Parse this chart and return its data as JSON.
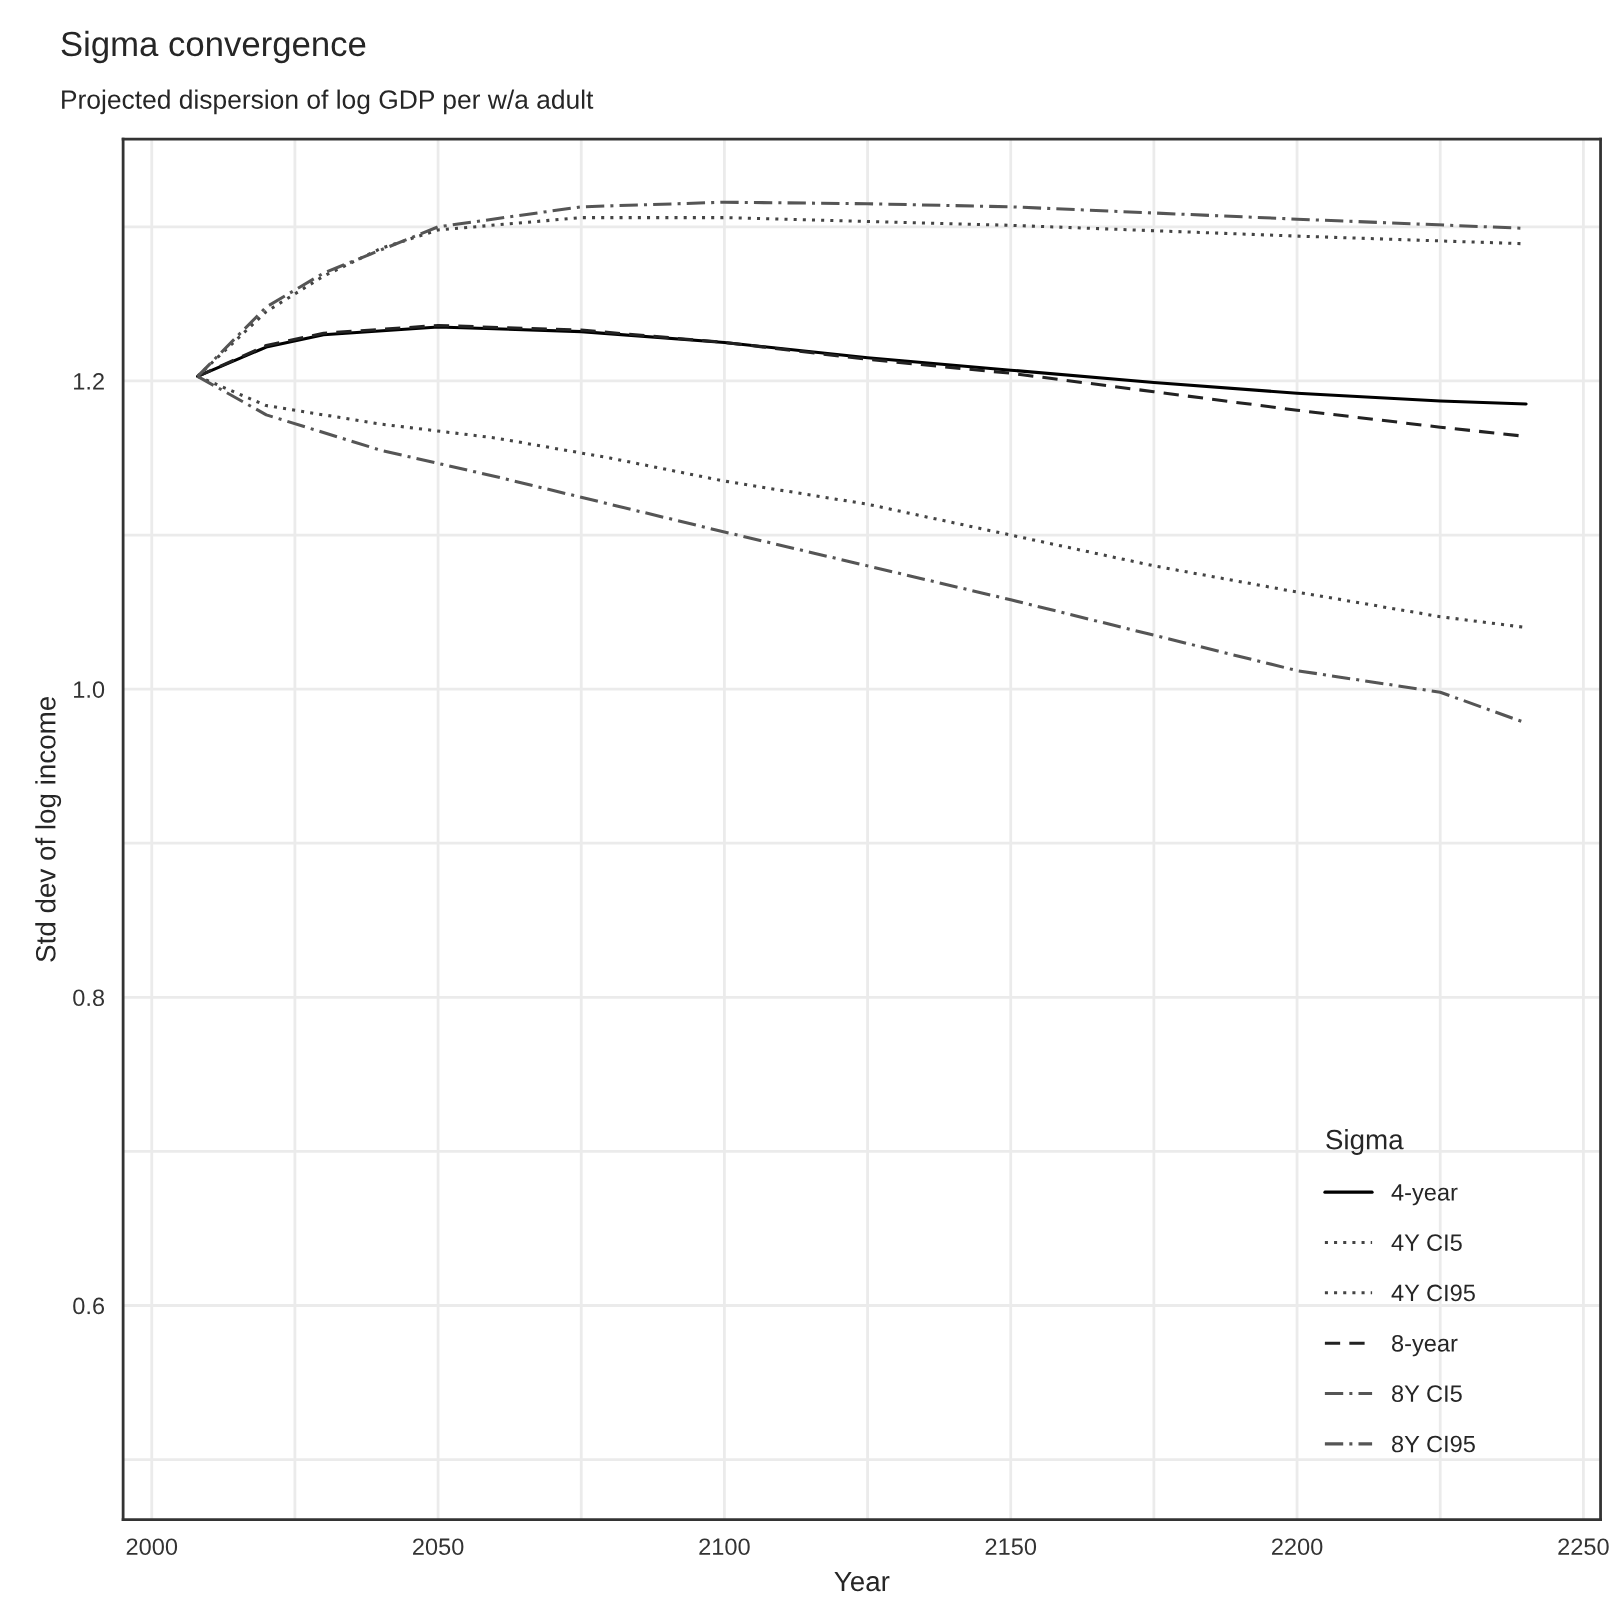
{
  "chart_data": {
    "type": "line",
    "title": "Sigma convergence",
    "subtitle": "Projected dispersion of log GDP per w/a adult",
    "xlabel": "Year",
    "ylabel": "Std dev of log income",
    "legend_title": "Sigma",
    "legend": "bottom right",
    "grid": true,
    "xlim": [
      1995,
      2253
    ],
    "ylim": [
      0.461,
      1.357
    ],
    "xticks": [
      2000,
      {
        "value": 2025,
        "label": null
      },
      2050,
      {
        "value": 2075,
        "label": null
      },
      2100,
      {
        "value": 2125,
        "label": null
      },
      2150,
      {
        "value": 2175,
        "label": null
      },
      2200,
      {
        "value": 2225,
        "label": null
      },
      2250
    ],
    "yticks": [
      {
        "value": 0.5,
        "label": null
      },
      0.6,
      {
        "value": 0.7,
        "label": null
      },
      0.8,
      {
        "value": 0.9,
        "label": null
      },
      {
        "value": 1.0,
        "label": "1.0"
      },
      {
        "value": 1.1,
        "label": null
      },
      1.2,
      {
        "value": 1.3,
        "label": null
      }
    ],
    "series": [
      {
        "name": "4-year",
        "color": "#000000",
        "line_style": "solid",
        "x": [
          2008,
          2020,
          2030,
          2050,
          2075,
          2100,
          2125,
          2150,
          2175,
          2200,
          2225,
          2240
        ],
        "values": [
          1.203,
          1.222,
          1.23,
          1.235,
          1.232,
          1.225,
          1.215,
          1.207,
          1.199,
          1.192,
          1.187,
          1.185
        ]
      },
      {
        "name": "4Y CI5",
        "color": "#444444",
        "line_style": "dotted",
        "x": [
          2008,
          2020,
          2040,
          2060,
          2080,
          2100,
          2125,
          2150,
          2175,
          2200,
          2225,
          2240
        ],
        "values": [
          1.203,
          1.184,
          1.172,
          1.163,
          1.15,
          1.135,
          1.12,
          1.1,
          1.08,
          1.063,
          1.047,
          1.04
        ]
      },
      {
        "name": "4Y CI95",
        "color": "#444444",
        "line_style": "dotted",
        "x": [
          2008,
          2020,
          2030,
          2040,
          2050,
          2075,
          2100,
          2150,
          2200,
          2240
        ],
        "values": [
          1.203,
          1.245,
          1.268,
          1.286,
          1.298,
          1.306,
          1.306,
          1.301,
          1.294,
          1.289
        ]
      },
      {
        "name": "8-year",
        "color": "#222222",
        "line_style": "dashed",
        "x": [
          2008,
          2020,
          2030,
          2050,
          2075,
          2100,
          2125,
          2150,
          2175,
          2200,
          2225,
          2240
        ],
        "values": [
          1.203,
          1.223,
          1.231,
          1.236,
          1.233,
          1.225,
          1.214,
          1.205,
          1.193,
          1.181,
          1.17,
          1.164
        ]
      },
      {
        "name": "8Y CI5",
        "color": "#555555",
        "line_style": "dashdot",
        "x": [
          2008,
          2020,
          2040,
          2060,
          2080,
          2100,
          2125,
          2150,
          2175,
          2200,
          2225,
          2240
        ],
        "values": [
          1.203,
          1.178,
          1.155,
          1.138,
          1.12,
          1.102,
          1.08,
          1.058,
          1.035,
          1.012,
          0.998,
          0.978
        ]
      },
      {
        "name": "8Y CI95",
        "color": "#555555",
        "line_style": "dashdot",
        "x": [
          2008,
          2020,
          2030,
          2050,
          2075,
          2100,
          2125,
          2150,
          2200,
          2240
        ],
        "values": [
          1.203,
          1.248,
          1.27,
          1.3,
          1.313,
          1.316,
          1.315,
          1.313,
          1.305,
          1.299
        ]
      }
    ]
  }
}
